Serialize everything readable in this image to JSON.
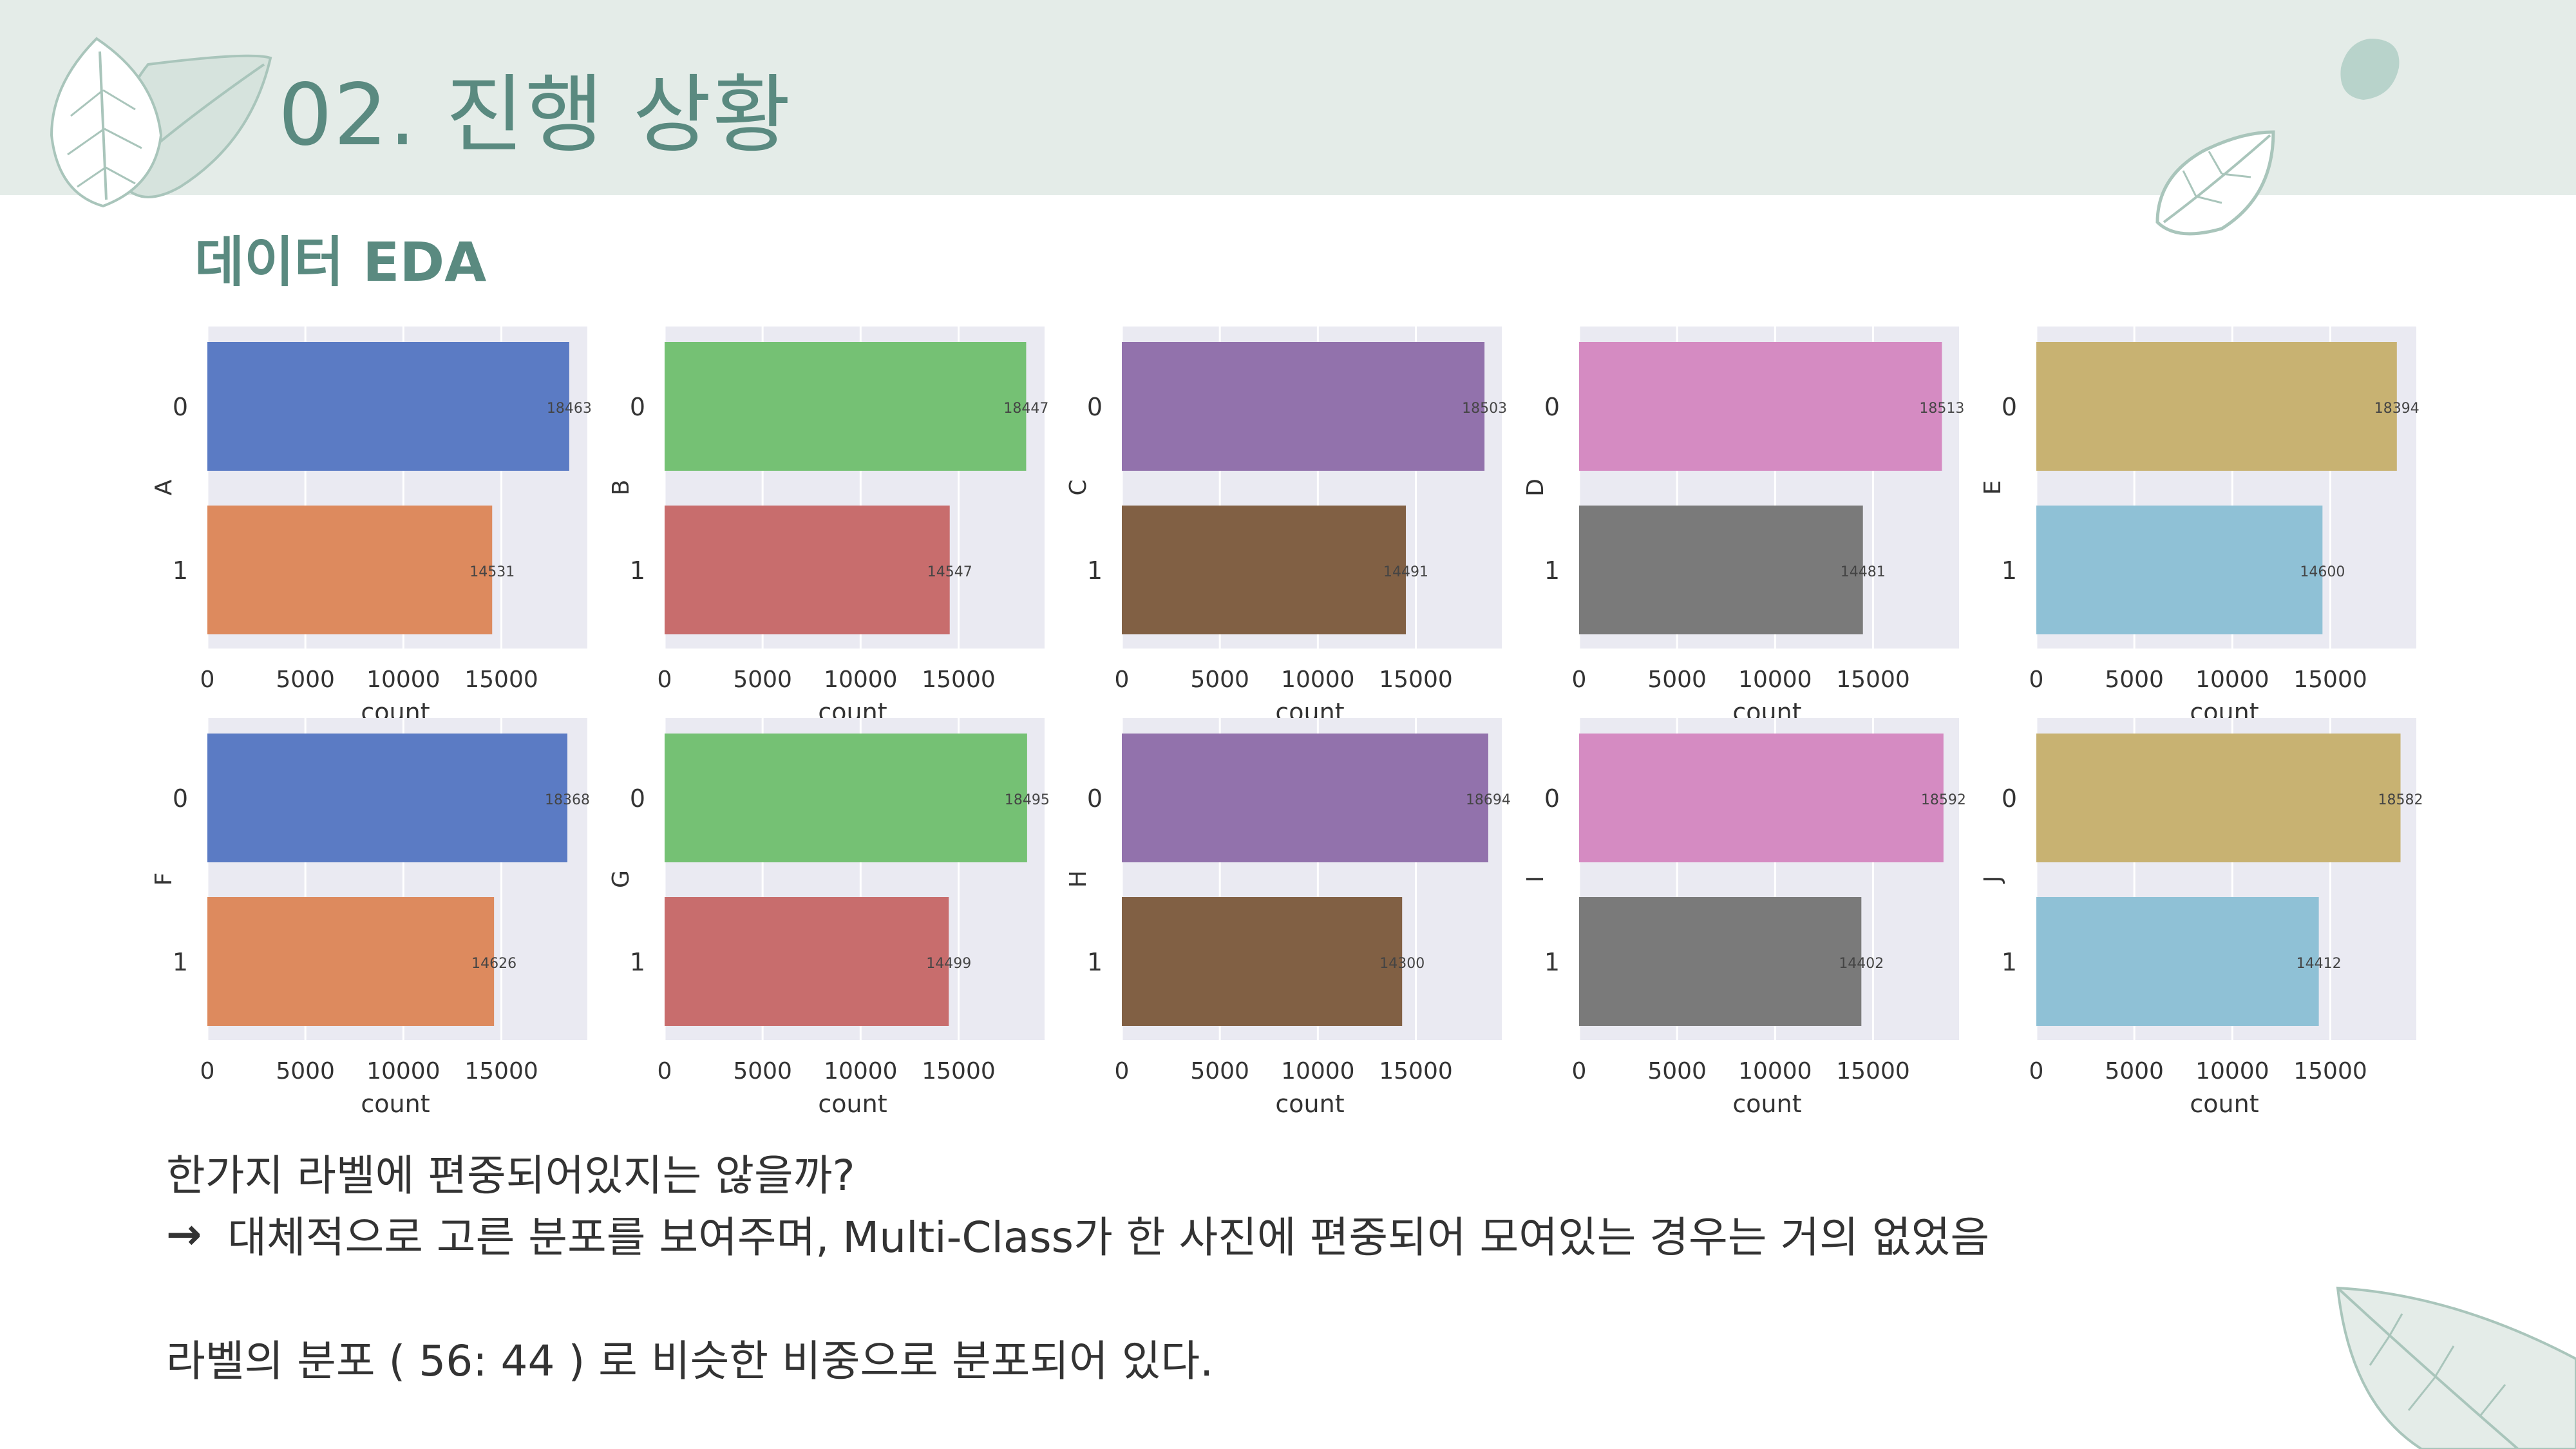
{
  "header": {
    "title": "02. 진행 상황",
    "subtitle": "데이터 EDA"
  },
  "text": {
    "question": "한가지 라벨에 편중되어있지는 않을까?",
    "arrow": "→",
    "answer": "대체적으로 고른 분포를 보여주며, Multi-Class가 한 사진에 편중되어 모여있는 경우는 거의 없었음",
    "summary": "라벨의 분포 ( 56: 44 ) 로 비슷한 비중으로 분포되어 있다."
  },
  "colors": {
    "accent": "#5a8a80",
    "header_band": "#e4ece8",
    "plot_bg": "#eaeaf2"
  },
  "chart_data": [
    {
      "type": "bar",
      "orientation": "horizontal",
      "ylabel": "A",
      "xlabel": "count",
      "categories": [
        "0",
        "1"
      ],
      "values": [
        18463,
        14531
      ],
      "xticks": [
        0,
        5000,
        10000,
        15000
      ],
      "xlim": [
        0,
        19386
      ],
      "colors": [
        "#5b7bc4",
        "#dd8a5e"
      ]
    },
    {
      "type": "bar",
      "orientation": "horizontal",
      "ylabel": "B",
      "xlabel": "count",
      "categories": [
        "0",
        "1"
      ],
      "values": [
        18447,
        14547
      ],
      "xticks": [
        0,
        5000,
        10000,
        15000
      ],
      "xlim": [
        0,
        19386
      ],
      "colors": [
        "#75c174",
        "#c86d6d"
      ]
    },
    {
      "type": "bar",
      "orientation": "horizontal",
      "ylabel": "C",
      "xlabel": "count",
      "categories": [
        "0",
        "1"
      ],
      "values": [
        18503,
        14491
      ],
      "xticks": [
        0,
        5000,
        10000,
        15000
      ],
      "xlim": [
        0,
        19386
      ],
      "colors": [
        "#9272ac",
        "#816044"
      ]
    },
    {
      "type": "bar",
      "orientation": "horizontal",
      "ylabel": "D",
      "xlabel": "count",
      "categories": [
        "0",
        "1"
      ],
      "values": [
        18513,
        14481
      ],
      "xticks": [
        0,
        5000,
        10000,
        15000
      ],
      "xlim": [
        0,
        19386
      ],
      "colors": [
        "#d58bc2",
        "#7a7a7a"
      ]
    },
    {
      "type": "bar",
      "orientation": "horizontal",
      "ylabel": "E",
      "xlabel": "count",
      "categories": [
        "0",
        "1"
      ],
      "values": [
        18394,
        14600
      ],
      "xticks": [
        0,
        5000,
        10000,
        15000
      ],
      "xlim": [
        0,
        19386
      ],
      "colors": [
        "#c8b272",
        "#8fc1d6"
      ]
    },
    {
      "type": "bar",
      "orientation": "horizontal",
      "ylabel": "F",
      "xlabel": "count",
      "categories": [
        "0",
        "1"
      ],
      "values": [
        18368,
        14626
      ],
      "xticks": [
        0,
        5000,
        10000,
        15000
      ],
      "xlim": [
        0,
        19386
      ],
      "colors": [
        "#5b7bc4",
        "#dd8a5e"
      ]
    },
    {
      "type": "bar",
      "orientation": "horizontal",
      "ylabel": "G",
      "xlabel": "count",
      "categories": [
        "0",
        "1"
      ],
      "values": [
        18495,
        14499
      ],
      "xticks": [
        0,
        5000,
        10000,
        15000
      ],
      "xlim": [
        0,
        19386
      ],
      "colors": [
        "#75c174",
        "#c86d6d"
      ]
    },
    {
      "type": "bar",
      "orientation": "horizontal",
      "ylabel": "H",
      "xlabel": "count",
      "categories": [
        "0",
        "1"
      ],
      "values": [
        18694,
        14300
      ],
      "xticks": [
        0,
        5000,
        10000,
        15000
      ],
      "xlim": [
        0,
        19386
      ],
      "colors": [
        "#9272ac",
        "#816044"
      ]
    },
    {
      "type": "bar",
      "orientation": "horizontal",
      "ylabel": "I",
      "xlabel": "count",
      "categories": [
        "0",
        "1"
      ],
      "values": [
        18592,
        14402
      ],
      "xticks": [
        0,
        5000,
        10000,
        15000
      ],
      "xlim": [
        0,
        19386
      ],
      "colors": [
        "#d58bc2",
        "#7a7a7a"
      ]
    },
    {
      "type": "bar",
      "orientation": "horizontal",
      "ylabel": "J",
      "xlabel": "count",
      "categories": [
        "0",
        "1"
      ],
      "values": [
        18582,
        14412
      ],
      "xticks": [
        0,
        5000,
        10000,
        15000
      ],
      "xlim": [
        0,
        19386
      ],
      "colors": [
        "#c8b272",
        "#8fc1d6"
      ]
    }
  ]
}
